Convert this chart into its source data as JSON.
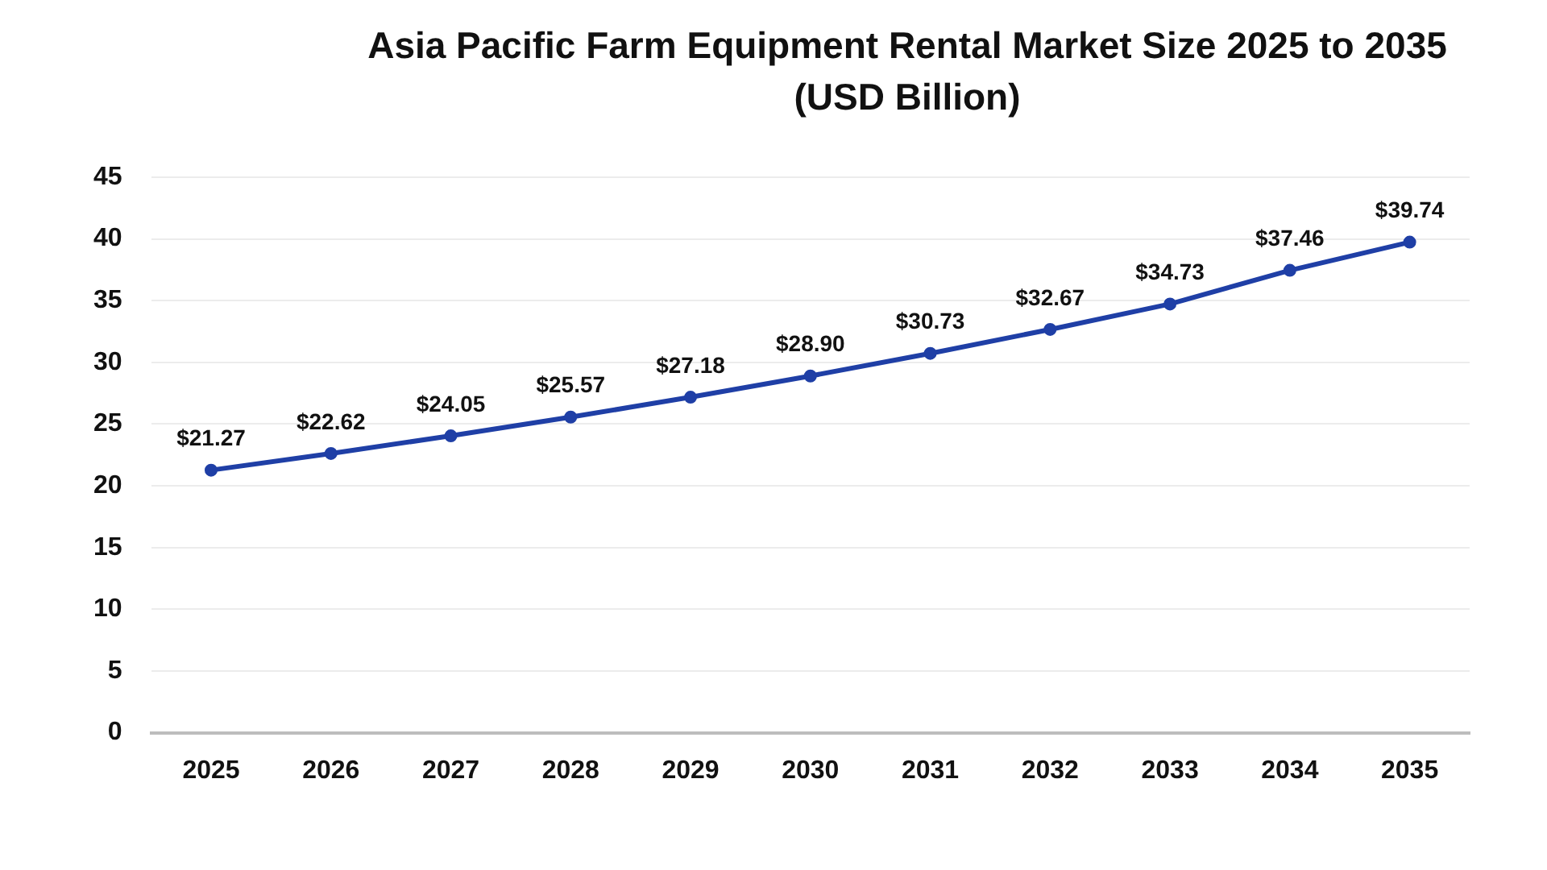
{
  "chart_data": {
    "type": "line",
    "title": "Asia Pacific Farm Equipment Rental Market Size 2025 to 2035 (USD Billion)",
    "categories": [
      "2025",
      "2026",
      "2027",
      "2028",
      "2029",
      "2030",
      "2031",
      "2032",
      "2033",
      "2034",
      "2035"
    ],
    "series": [
      {
        "color": "#1f3fa6",
        "values": [
          21.27,
          22.62,
          24.05,
          25.57,
          27.18,
          28.9,
          30.73,
          32.67,
          34.73,
          37.46,
          39.74
        ],
        "value_labels": [
          "$21.27",
          "$22.62",
          "$24.05",
          "$25.57",
          "$27.18",
          "$28.90",
          "$30.73",
          "$32.67",
          "$34.73",
          "$37.46",
          "$39.74"
        ]
      }
    ],
    "ylim": [
      0,
      45
    ],
    "yticks": [
      0,
      5,
      10,
      15,
      20,
      25,
      30,
      35,
      40,
      45
    ],
    "grid": "y",
    "marker": "circle",
    "line_style": "solid"
  }
}
